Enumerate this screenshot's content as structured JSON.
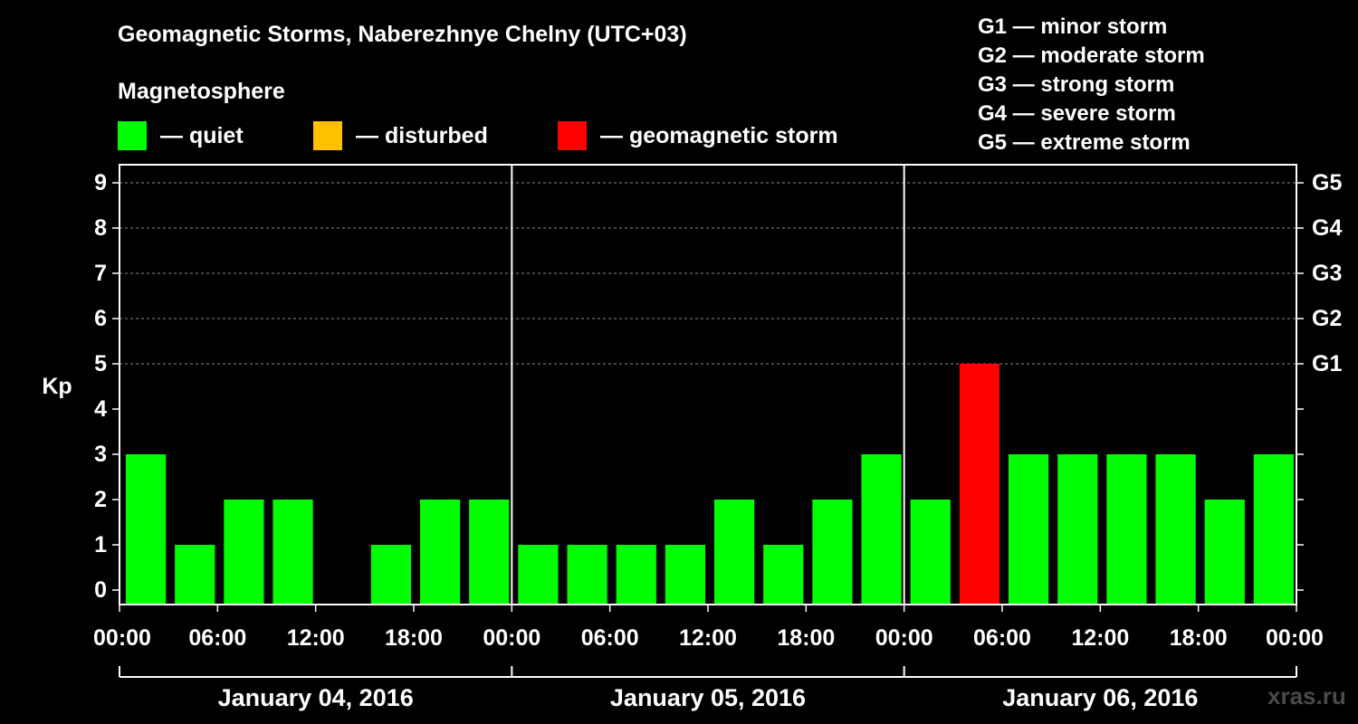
{
  "title": "Geomagnetic Storms, Naberezhnye Chelny (UTC+03)",
  "subtitle": "Magnetosphere",
  "legend": [
    {
      "label": "— quiet",
      "color": "#00ff00"
    },
    {
      "label": "— disturbed",
      "color": "#ffc000"
    },
    {
      "label": "— geomagnetic storm",
      "color": "#ff0000"
    }
  ],
  "g_scale_legend": [
    "G1 — minor storm",
    "G2 — moderate storm",
    "G3 — strong storm",
    "G4 — severe storm",
    "G5 — extreme storm"
  ],
  "watermark": "xras.ru",
  "chart_data": {
    "type": "bar",
    "title": "Geomagnetic Storms, Naberezhnye Chelny (UTC+03)",
    "ylabel": "Kp",
    "xlabel": "",
    "ylim": [
      0,
      9
    ],
    "yticks": [
      "0",
      "1",
      "2",
      "3",
      "4",
      "5",
      "6",
      "7",
      "8",
      "9"
    ],
    "right_axis_labels": [
      {
        "kp": 5,
        "label": "G1"
      },
      {
        "kp": 6,
        "label": "G2"
      },
      {
        "kp": 7,
        "label": "G3"
      },
      {
        "kp": 8,
        "label": "G4"
      },
      {
        "kp": 9,
        "label": "G5"
      }
    ],
    "xticks": [
      "00:00",
      "06:00",
      "12:00",
      "18:00",
      "00:00",
      "06:00",
      "12:00",
      "18:00",
      "00:00",
      "06:00",
      "12:00",
      "18:00",
      "00:00"
    ],
    "days": [
      "January 04, 2016",
      "January 05, 2016",
      "January 06, 2016"
    ],
    "interval_hours": 3,
    "values": [
      3,
      1,
      2,
      2,
      0,
      1,
      2,
      2,
      1,
      1,
      1,
      1,
      2,
      1,
      2,
      3,
      2,
      5,
      3,
      3,
      3,
      3,
      2,
      3
    ],
    "colors": {
      "quiet": "#00ff00",
      "disturbed": "#ffc000",
      "storm": "#ff0000"
    },
    "grid": "dashed at integer Kp 5-9"
  }
}
